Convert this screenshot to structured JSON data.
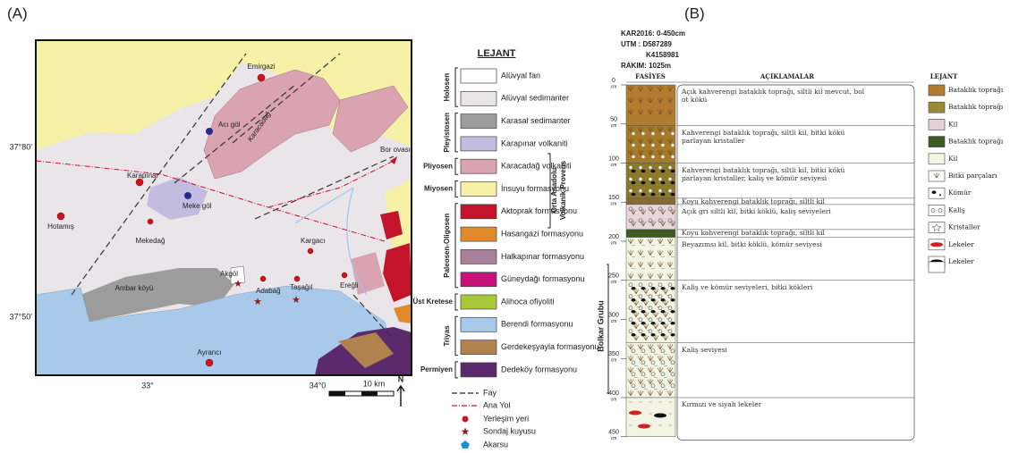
{
  "panel_a": {
    "label": "(A)",
    "map": {
      "places": [
        "Emirgazi",
        "Karacadağ",
        "Acı göl",
        "Karapınar",
        "Meke göl",
        "Bor ovası",
        "Hotamış",
        "Mekedağ",
        "Kargacı",
        "Akgöl",
        "Adabağ",
        "Taşağıl",
        "Ereğli",
        "Ambar köyü",
        "Ayrancı"
      ],
      "lat_labels": [
        "37°80'",
        "37°50'"
      ],
      "lon_labels": [
        "33°",
        "34°0"
      ],
      "scale": "10 km",
      "north": "N"
    },
    "legend": {
      "title": "LEJANT",
      "province": [
        "Orta Anadolu",
        "Volkanik Provens"
      ],
      "groups": [
        {
          "period": "Holosen",
          "units": [
            {
              "name": "Alüvyal fan",
              "color": "#ffffff"
            },
            {
              "name": "Alüvyal sedimanter",
              "color": "#e9e5e9"
            }
          ]
        },
        {
          "period": "Pleyistosen",
          "units": [
            {
              "name": "Karasal sedimanter",
              "color": "#9c9c9c"
            },
            {
              "name": "Karapınar volkaniti",
              "color": "#c2bde0"
            }
          ]
        },
        {
          "period": "Pliyosen",
          "units": [
            {
              "name": "Karacadağ volkaniti",
              "color": "#d9a3b1"
            }
          ]
        },
        {
          "period": "Miyosen",
          "units": [
            {
              "name": "İnsuyu formasyonu",
              "color": "#f6f1a6"
            }
          ]
        },
        {
          "period": "Paleosen-Oligosen",
          "units": [
            {
              "name": "Aktoprak formasyonu",
              "color": "#c4142c"
            },
            {
              "name": "Hasangazi formasyonu",
              "color": "#e08a2c"
            },
            {
              "name": "Halkapınar formasyonu",
              "color": "#a9809c"
            },
            {
              "name": "Güneydağı formasyonu",
              "color": "#c8107a"
            }
          ]
        },
        {
          "period": "Üst Kretese",
          "units": [
            {
              "name": "Alihoca ofiyoliti",
              "color": "#a8c83a"
            }
          ]
        },
        {
          "period": "Triyas",
          "units": [
            {
              "name": "Berendi formasyonu",
              "color": "#a9c9ea"
            },
            {
              "name": "Gerdekeşyayla formasyonu",
              "color": "#b0824e"
            }
          ]
        },
        {
          "period": "Permiyen",
          "units": [
            {
              "name": "Dedeköy formasyonu",
              "color": "#5b2a6c"
            }
          ]
        }
      ],
      "symbols": [
        "Fay",
        "Ana Yol",
        "Yerleşim yeri",
        "Sondaj kuyusu",
        "Akarsu"
      ]
    }
  },
  "panel_b": {
    "label": "(B)",
    "header": [
      "KAR2016: 0-450cm",
      "UTM : D587289",
      "K4158981",
      "RAKIM: 1025m"
    ],
    "columns": [
      "FASİYES",
      "AÇIKLAMALAR",
      "LEJANT"
    ],
    "depth_ticks": [
      0,
      50,
      100,
      150,
      200,
      250,
      300,
      350,
      400,
      450
    ],
    "depth_unit": "cm",
    "group": "Bolkar Grubu",
    "layers": [
      {
        "top": 0,
        "bottom": 52,
        "color": "#b27c30",
        "description": "Açık kahverengi bataklık toprağı, siltli kil mevcut, bol ot kökü"
      },
      {
        "top": 52,
        "bottom": 100,
        "color": "#a57b2a",
        "description": "Kahverengi bataklık toprağı, siltli kil, bitki kökü parlayan kristaller"
      },
      {
        "top": 100,
        "bottom": 145,
        "color": "#8c7a2c",
        "description": "Kahverengi bataklık toprağı, siltli kil, bitki kökü parlayan kristaller, kaliş ve kömür seviyesi"
      },
      {
        "top": 145,
        "bottom": 153,
        "color": "#8a6a34",
        "description": "Koyu kahverengi bataklık toprağı, siltli kil"
      },
      {
        "top": 153,
        "bottom": 185,
        "color": "#e5d7dc",
        "description": "Açık gri siltli kil, bitki köklü, kaliş seviyeleri"
      },
      {
        "top": 185,
        "bottom": 195,
        "color": "#3d5a22",
        "description": "Koyu kahverengi bataklık toprağı, siltli kil"
      },
      {
        "top": 195,
        "bottom": 250,
        "color": "#f3f4e4",
        "description": "Beyazımsı kil, bitki köklü, kömür seviyesi"
      },
      {
        "top": 250,
        "bottom": 330,
        "color": "#f3f4e4",
        "description": "Kaliş ve kömür seviyeleri, bitki kökleri"
      },
      {
        "top": 330,
        "bottom": 400,
        "color": "#f3f4e4",
        "description": "Kaliş seviyesi"
      },
      {
        "top": 400,
        "bottom": 450,
        "color": "#f3f4e4",
        "description": "Kırmızı ve siyah lekeler"
      }
    ],
    "legend": [
      {
        "label": "Bataklık toprağı",
        "color": "#b27c30"
      },
      {
        "label": "Bataklık toprağı",
        "color": "#9a8a30"
      },
      {
        "label": "Kil",
        "color": "#e0d2d6"
      },
      {
        "label": "Bataklık toprağı",
        "color": "#3d5a22"
      },
      {
        "label": "Kil",
        "color": "#f3f4e4"
      },
      {
        "label": "Bitki parçaları"
      },
      {
        "label": "Kömür"
      },
      {
        "label": "Kaliş"
      },
      {
        "label": "Kristaller"
      },
      {
        "label": "Lekeler",
        "color": "#d42020"
      },
      {
        "label": "Lekeler",
        "color": "#000000"
      }
    ]
  }
}
